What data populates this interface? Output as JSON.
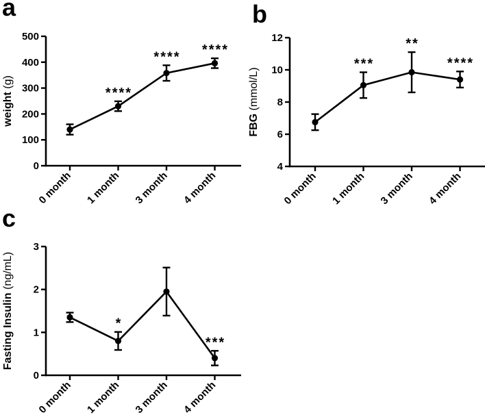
{
  "figure": {
    "background": "#ffffff",
    "ink_color": "#000000"
  },
  "chart_data": [
    {
      "type": "line",
      "panel_letter": "a",
      "title": "",
      "categories": [
        "0 month",
        "1 month",
        "3 month",
        "4 month"
      ],
      "values": [
        140,
        230,
        358,
        396
      ],
      "errors": [
        20,
        19,
        30,
        19
      ],
      "significance": [
        "",
        "****",
        "****",
        "****"
      ],
      "ylabel_bold": "weight",
      "ylabel_unit": " (g)",
      "ylim": [
        0,
        500
      ],
      "yticks": [
        0,
        100,
        200,
        300,
        400,
        500
      ],
      "marker": "filled-circle",
      "line_color": "#000000",
      "legend": "none",
      "grid": "off"
    },
    {
      "type": "line",
      "panel_letter": "b",
      "title": "",
      "categories": [
        "0 month",
        "1 month",
        "3 month",
        "4 month"
      ],
      "values": [
        6.75,
        9.05,
        9.85,
        9.4
      ],
      "errors": [
        0.5,
        0.8,
        1.25,
        0.5
      ],
      "significance": [
        "",
        "***",
        "**",
        "****"
      ],
      "ylabel_bold": "FBG",
      "ylabel_unit": " (mmol/L)",
      "ylim": [
        4,
        12
      ],
      "yticks": [
        4,
        6,
        8,
        10,
        12
      ],
      "marker": "filled-circle",
      "line_color": "#000000",
      "legend": "none",
      "grid": "off"
    },
    {
      "type": "line",
      "panel_letter": "c",
      "title": "",
      "categories": [
        "0 month",
        "1 month",
        "3 month",
        "4 month"
      ],
      "values": [
        1.35,
        0.8,
        1.95,
        0.4
      ],
      "errors": [
        0.11,
        0.21,
        0.56,
        0.17
      ],
      "significance": [
        "",
        "*",
        "",
        "***"
      ],
      "ylabel_bold": "Fasting Insulin",
      "ylabel_unit": " (ng/mL)",
      "ylim": [
        0,
        3
      ],
      "yticks": [
        0,
        1,
        2,
        3
      ],
      "marker": "filled-circle",
      "line_color": "#000000",
      "legend": "none",
      "grid": "off"
    }
  ]
}
